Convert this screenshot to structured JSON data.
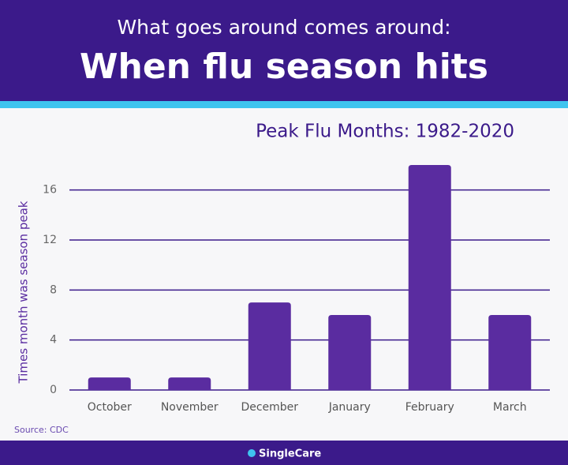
{
  "header": {
    "subtitle": "What goes around comes around:",
    "title": "When flu season hits"
  },
  "chart_data": {
    "type": "bar",
    "title": "Peak Flu Months: 1982-2020",
    "y_label": "Times month was season peak",
    "categories": [
      "October",
      "November",
      "December",
      "January",
      "February",
      "March"
    ],
    "values": [
      1,
      1,
      7,
      6,
      18,
      6
    ],
    "color": "#5a2ca0",
    "ylim": [
      0,
      18
    ],
    "yticks": [
      0,
      4,
      8,
      12,
      16
    ],
    "grid": true
  },
  "source": "Source: CDC",
  "footer": {
    "brand": "SingleCare"
  }
}
